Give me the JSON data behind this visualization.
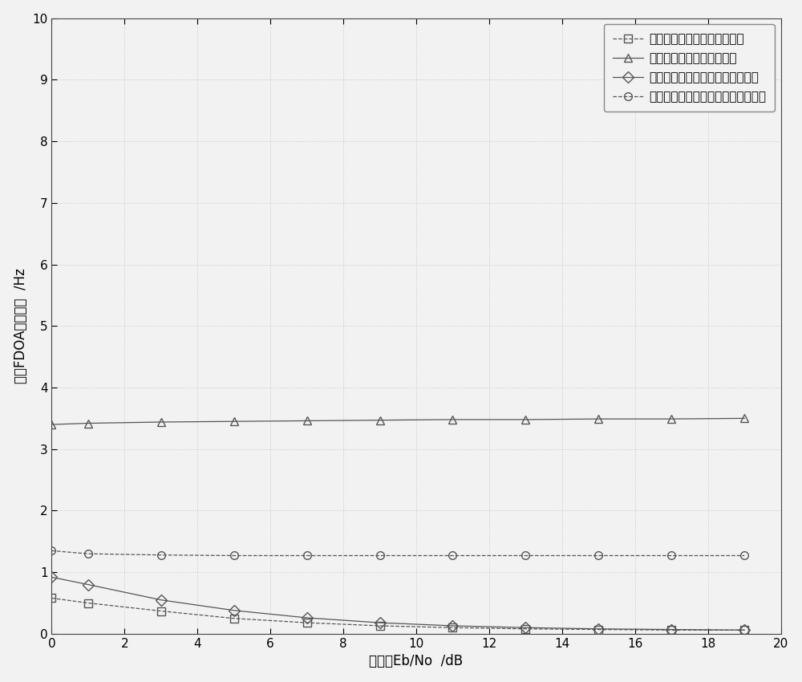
{
  "x": [
    0,
    1,
    3,
    5,
    7,
    9,
    11,
    13,
    15,
    17,
    19
  ],
  "series1_label": "非高时变信号基于互模糊方法",
  "series2_label": "高时变信号基于互模糊方法",
  "series3_label": "高时变信号基于本专利的估计方法",
  "series4_label": "高时变信号基于运动补偿的估计方法",
  "xlabel": "信噪比Eb/No  /dB",
  "ylabel": "频差FDOA估计误差  /Hz",
  "series1_y": [
    0.58,
    0.5,
    0.37,
    0.25,
    0.18,
    0.13,
    0.1,
    0.08,
    0.07,
    0.06,
    0.06
  ],
  "series2_y": [
    3.4,
    3.42,
    3.44,
    3.45,
    3.46,
    3.47,
    3.48,
    3.48,
    3.49,
    3.49,
    3.5
  ],
  "series3_y": [
    0.92,
    0.8,
    0.55,
    0.38,
    0.26,
    0.18,
    0.13,
    0.1,
    0.08,
    0.07,
    0.06
  ],
  "series4_y": [
    1.35,
    1.3,
    1.28,
    1.27,
    1.27,
    1.27,
    1.27,
    1.27,
    1.27,
    1.27,
    1.27
  ],
  "series1_color": "#555555",
  "series2_color": "#555555",
  "series3_color": "#555555",
  "series4_color": "#555555",
  "series1_linestyle": "--",
  "series2_linestyle": "-",
  "series3_linestyle": "-",
  "series4_linestyle": "--",
  "series1_marker": "s",
  "series2_marker": "^",
  "series3_marker": "D",
  "series4_marker": "o",
  "xlim": [
    0,
    20
  ],
  "ylim": [
    0,
    10
  ],
  "xticks": [
    0,
    2,
    4,
    6,
    8,
    10,
    12,
    14,
    16,
    18,
    20
  ],
  "yticks": [
    0,
    1,
    2,
    3,
    4,
    5,
    6,
    7,
    8,
    9,
    10
  ],
  "markersize": 7,
  "linewidth": 0.9,
  "figsize": [
    10.0,
    8.5
  ],
  "dpi": 100,
  "bg_color": "#f2f2f2",
  "grid_color": "#c0c0c0",
  "grid_linestyle": ":",
  "grid_linewidth": 0.6
}
